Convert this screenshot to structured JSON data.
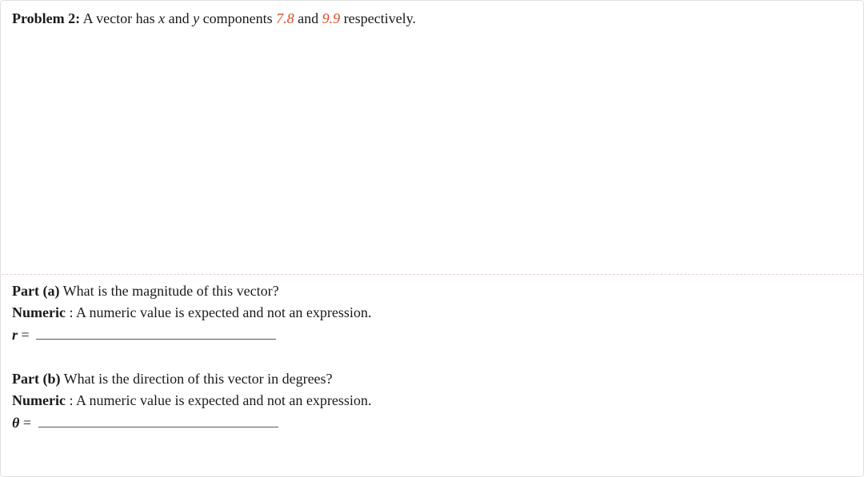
{
  "problem": {
    "label": "Problem 2:",
    "text1": "  A vector has ",
    "var_x": "x",
    "text2": " and ",
    "var_y": "y",
    "text3": " components ",
    "value_x": "7.8",
    "text4": " and ",
    "value_y": "9.9",
    "text5": " respectively."
  },
  "part_a": {
    "label": "Part (a)",
    "question": " What is the magnitude of this vector?",
    "numeric_label": "Numeric",
    "numeric_text": "   : A numeric value is expected and not an expression.",
    "answer_var": "r",
    "equals": " = "
  },
  "part_b": {
    "label": "Part (b)",
    "question": " What is the direction of this vector in degrees?",
    "numeric_label": "Numeric",
    "numeric_text": "   : A numeric value is expected and not an expression.",
    "answer_var": "θ",
    "equals": " = "
  },
  "style": {
    "accent_color": "#d94f2a",
    "border_color": "#e0e0e0",
    "text_color": "#1a1a1a",
    "underline_color": "#555555",
    "font_family": "Georgia, serif",
    "font_size_pt": 14
  }
}
